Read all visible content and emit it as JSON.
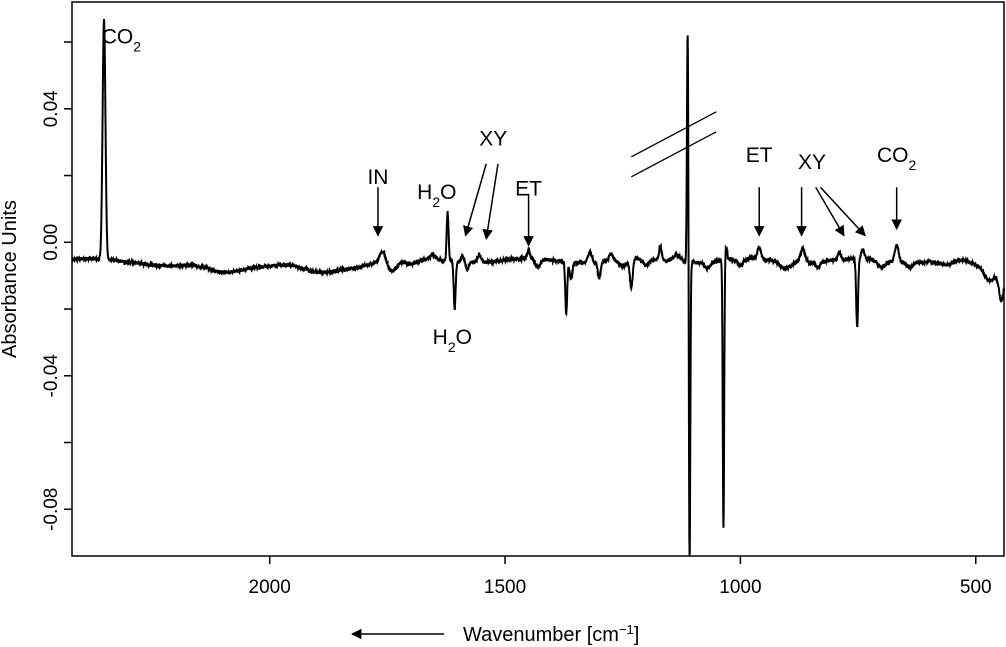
{
  "chart_data": {
    "type": "line",
    "title": "",
    "xlabel": "Wavenumber [cm",
    "xlabel_sup": "−1",
    "xlabel_end": "]",
    "ylabel": "Absorbance Units",
    "x_reversed": true,
    "xlim": [
      2420,
      440
    ],
    "ylim": [
      -0.094,
      0.072
    ],
    "x_ticks": [
      2000,
      1500,
      1000,
      500
    ],
    "x_tick_labels": [
      "2000",
      "1500",
      "1000",
      "500"
    ],
    "y_ticks": [
      0.04,
      0.0,
      -0.04,
      -0.08
    ],
    "y_tick_labels": [
      "0.04",
      "0.00",
      "-0.04",
      "-0.08"
    ],
    "y_minor_ticks": [
      0.06,
      0.02,
      -0.02,
      -0.06
    ],
    "axis_break_near_x": 1115,
    "series": [
      {
        "color": "#000000",
        "baseline": -0.0055,
        "features": [
          {
            "x": 2352,
            "dy": 0.072,
            "w": 3
          },
          {
            "x": 2200,
            "dy": -0.0015,
            "w": 40
          },
          {
            "x": 2100,
            "dy": -0.0035,
            "w": 40
          },
          {
            "x": 2000,
            "dy": -0.001,
            "w": 35
          },
          {
            "x": 1895,
            "dy": -0.004,
            "w": 40
          },
          {
            "x": 1820,
            "dy": -0.001,
            "w": 25
          },
          {
            "x": 1760,
            "dy": 0.0035,
            "w": 6
          },
          {
            "x": 1740,
            "dy": -0.003,
            "w": 10
          },
          {
            "x": 1700,
            "dy": -0.0015,
            "w": 15
          },
          {
            "x": 1653,
            "dy": 0.0015,
            "w": 5
          },
          {
            "x": 1622,
            "dy": 0.0145,
            "w": 2
          },
          {
            "x": 1607,
            "dy": -0.014,
            "w": 2
          },
          {
            "x": 1590,
            "dy": 0.002,
            "w": 3
          },
          {
            "x": 1580,
            "dy": -0.002,
            "w": 3
          },
          {
            "x": 1555,
            "dy": 0.0025,
            "w": 4
          },
          {
            "x": 1450,
            "dy": 0.0025,
            "w": 3
          },
          {
            "x": 1430,
            "dy": -0.0025,
            "w": 5
          },
          {
            "x": 1370,
            "dy": -0.0155,
            "w": 2
          },
          {
            "x": 1360,
            "dy": -0.005,
            "w": 3
          },
          {
            "x": 1320,
            "dy": 0.003,
            "w": 4
          },
          {
            "x": 1300,
            "dy": -0.005,
            "w": 3
          },
          {
            "x": 1275,
            "dy": 0.002,
            "w": 4
          },
          {
            "x": 1250,
            "dy": -0.002,
            "w": 8
          },
          {
            "x": 1232,
            "dy": -0.0085,
            "w": 3
          },
          {
            "x": 1200,
            "dy": -0.002,
            "w": 6
          },
          {
            "x": 1170,
            "dy": 0.004,
            "w": 3
          },
          {
            "x": 1135,
            "dy": 0.002,
            "w": 8
          },
          {
            "x": 1112,
            "dy": 0.071,
            "w": 1.5
          },
          {
            "x": 1108,
            "dy": -0.092,
            "w": 1.5
          },
          {
            "x": 1070,
            "dy": -0.002,
            "w": 6
          },
          {
            "x": 1036,
            "dy": -0.08,
            "w": 1.5
          },
          {
            "x": 1030,
            "dy": 0.004,
            "w": 2
          },
          {
            "x": 1000,
            "dy": -0.002,
            "w": 6
          },
          {
            "x": 960,
            "dy": 0.0035,
            "w": 4
          },
          {
            "x": 905,
            "dy": -0.002,
            "w": 10
          },
          {
            "x": 868,
            "dy": 0.004,
            "w": 5
          },
          {
            "x": 835,
            "dy": -0.0015,
            "w": 6
          },
          {
            "x": 790,
            "dy": 0.002,
            "w": 3
          },
          {
            "x": 752,
            "dy": -0.0205,
            "w": 2
          },
          {
            "x": 740,
            "dy": 0.003,
            "w": 3
          },
          {
            "x": 700,
            "dy": -0.002,
            "w": 8
          },
          {
            "x": 668,
            "dy": 0.005,
            "w": 4
          },
          {
            "x": 640,
            "dy": -0.0015,
            "w": 6
          },
          {
            "x": 560,
            "dy": -0.0015,
            "w": 15
          },
          {
            "x": 500,
            "dy": -0.0015,
            "w": 15
          },
          {
            "x": 470,
            "dy": -0.006,
            "w": 12
          },
          {
            "x": 445,
            "dy": -0.011,
            "w": 6
          }
        ]
      }
    ],
    "annotations": [
      {
        "text": "CO",
        "sub": "2",
        "x": 2315,
        "y": 0.0595,
        "arrow": false
      },
      {
        "text": "IN",
        "sub": "",
        "x": 1770,
        "y": 0.0175,
        "arrow": true,
        "arrow_from": [
          1770,
          0.0165
        ],
        "arrow_to": [
          1770,
          0.002
        ],
        "color": "#555555"
      },
      {
        "text": "H",
        "sub": "2",
        "suffix": "O",
        "x": 1645,
        "y": 0.013,
        "arrow": false
      },
      {
        "text": "H",
        "sub": "2",
        "suffix": "O",
        "x": 1612,
        "y": -0.0305,
        "arrow": false
      },
      {
        "text": "XY",
        "sub": "",
        "x": 1525,
        "y": 0.029,
        "arrow": false
      },
      {
        "text": "ET",
        "sub": "",
        "x": 1450,
        "y": 0.014,
        "arrow": true,
        "arrow_from": [
          1450,
          0.0145
        ],
        "arrow_to": [
          1450,
          -0.001
        ]
      },
      {
        "text": "ET",
        "sub": "",
        "x": 960,
        "y": 0.024,
        "arrow": true,
        "arrow_from": [
          960,
          0.0165
        ],
        "arrow_to": [
          960,
          0.002
        ]
      },
      {
        "text": "XY",
        "sub": "",
        "x": 848,
        "y": 0.022,
        "arrow": true,
        "arrow_from": [
          870,
          0.0165
        ],
        "arrow_to": [
          870,
          0.002
        ]
      },
      {
        "text": "CO",
        "sub": "2",
        "x": 668,
        "y": 0.024,
        "arrow": true,
        "arrow_from": [
          668,
          0.0165
        ],
        "arrow_to": [
          668,
          0.004
        ]
      }
    ],
    "extra_arrows": [
      {
        "from": [
          1540,
          0.0235
        ],
        "to": [
          1584,
          0.002
        ]
      },
      {
        "from": [
          1515,
          0.0235
        ],
        "to": [
          1540,
          0.001
        ]
      },
      {
        "from": [
          840,
          0.0165
        ],
        "to": [
          780,
          0.002
        ]
      },
      {
        "from": [
          830,
          0.0165
        ],
        "to": [
          735,
          0.002
        ]
      }
    ]
  }
}
